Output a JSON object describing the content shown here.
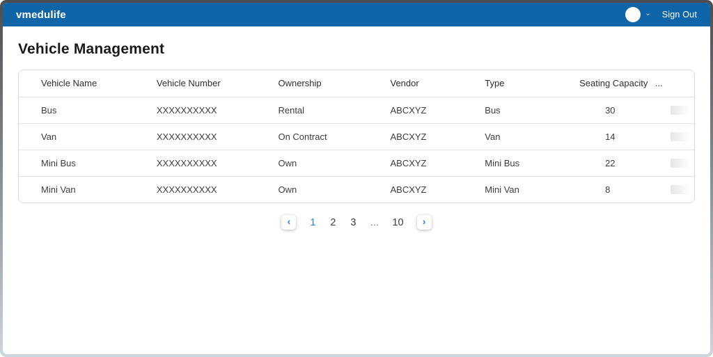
{
  "header": {
    "brand": "vmedulife",
    "sign_out_label": "Sign Out"
  },
  "page": {
    "title": "Vehicle Management"
  },
  "table": {
    "columns": [
      {
        "key": "vehicle_name",
        "label": "Vehicle Name"
      },
      {
        "key": "vehicle_number",
        "label": "Vehicle Number"
      },
      {
        "key": "ownership",
        "label": "Ownership"
      },
      {
        "key": "vendor",
        "label": "Vendor"
      },
      {
        "key": "type",
        "label": "Type"
      },
      {
        "key": "seating_capacity",
        "label": "Seating Capacity"
      },
      {
        "key": "actions",
        "label": "..."
      }
    ],
    "rows": [
      {
        "vehicle_name": "Bus",
        "vehicle_number": "XXXXXXXXXX",
        "ownership": "Rental",
        "vendor": "ABCXYZ",
        "type": "Bus",
        "seating_capacity": "30"
      },
      {
        "vehicle_name": "Van",
        "vehicle_number": "XXXXXXXXXX",
        "ownership": "On Contract",
        "vendor": "ABCXYZ",
        "type": "Van",
        "seating_capacity": "14"
      },
      {
        "vehicle_name": "Mini Bus",
        "vehicle_number": "XXXXXXXXXX",
        "ownership": "Own",
        "vendor": "ABCXYZ",
        "type": "Mini Bus",
        "seating_capacity": "22"
      },
      {
        "vehicle_name": "Mini Van",
        "vehicle_number": "XXXXXXXXXX",
        "ownership": "Own",
        "vendor": "ABCXYZ",
        "type": "Mini Van",
        "seating_capacity": "8"
      }
    ],
    "skeleton_row_count": 4
  },
  "pagination": {
    "pages": [
      "1",
      "2",
      "3",
      "...",
      "10"
    ],
    "active_page": "1"
  },
  "icons": {
    "chevron_down": "⌄",
    "prev": "‹",
    "next": "›"
  },
  "colors": {
    "header_blue": "#1065A9",
    "accent_blue": "#2B7DE1"
  }
}
